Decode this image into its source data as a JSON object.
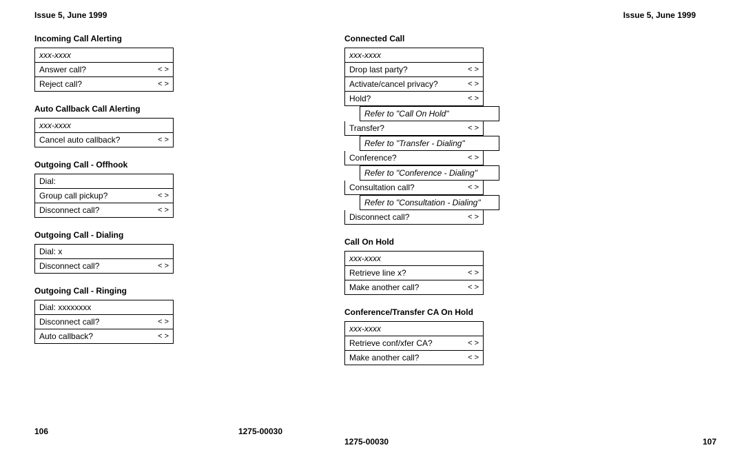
{
  "header": {
    "issue": "Issue 5, June 1999"
  },
  "left": {
    "sections": {
      "incoming": {
        "title": "Incoming Call Alerting",
        "header": "xxx-xxxx",
        "r1": "Answer call?",
        "r2": "Reject call?"
      },
      "autocb": {
        "title": "Auto Callback Call Alerting",
        "header": "xxx-xxxx",
        "r1": "Cancel auto callback?"
      },
      "offhook": {
        "title": "Outgoing Call - Offhook",
        "r0": "Dial:",
        "r1": "Group call pickup?",
        "r2": "Disconnect call?"
      },
      "dialing": {
        "title": "Outgoing Call - Dialing",
        "r0": "Dial: x",
        "r1": "Disconnect call?"
      },
      "ringing": {
        "title": "Outgoing Call - Ringing",
        "r0": "Dial: xxxxxxxx",
        "r1": "Disconnect call?",
        "r2": "Auto callback?"
      }
    },
    "footer": {
      "pageno": "106",
      "docno": "1275-00030"
    }
  },
  "right": {
    "sections": {
      "connected": {
        "title": "Connected Call",
        "header": "xxx-xxxx",
        "r1": "Drop last party?",
        "r2": "Activate/cancel privacy?",
        "r3": "Hold?",
        "s3": "Refer to \"Call On Hold\"",
        "r4": "Transfer?",
        "s4": "Refer to \"Transfer - Dialing\"",
        "r5": "Conference?",
        "s5": "Refer to \"Conference - Dialing\"",
        "r6": "Consultation call?",
        "s6": "Refer to \"Consultation - Dialing\"",
        "r7": "Disconnect call?"
      },
      "onhold": {
        "title": "Call On Hold",
        "header": "xxx-xxxx",
        "r1": "Retrieve line x?",
        "r2": "Make another call?"
      },
      "confxfer": {
        "title": "Conference/Transfer CA On Hold",
        "header": "xxx-xxxx",
        "r1": "Retrieve conf/xfer CA?",
        "r2": "Make another call?"
      }
    },
    "footer": {
      "docno": "1275-00030",
      "pageno": "107"
    }
  },
  "marker": "< >"
}
